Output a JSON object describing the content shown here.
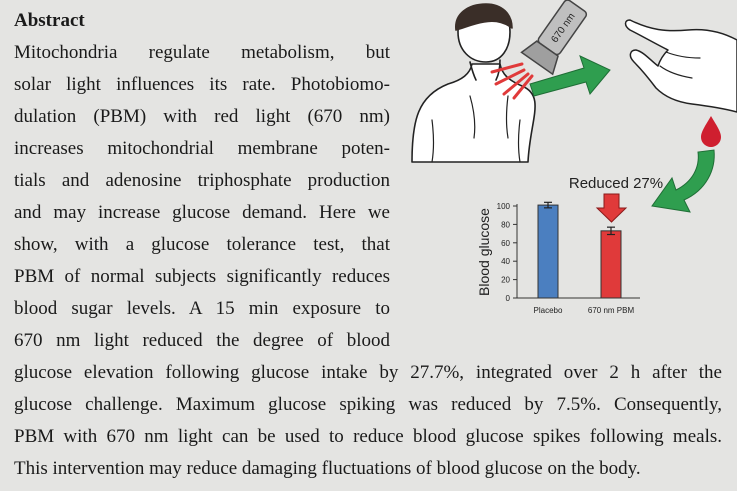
{
  "abstract": {
    "heading": "Abstract",
    "column_lines": [
      "Mitochondria regulate metabolism, but",
      "solar light influences its rate. Photobiomo-",
      "dulation (PBM) with red light (670 nm)",
      "increases mitochondrial membrane poten-",
      "tials and adenosine triphosphate production",
      "and may increase glucose demand. Here we",
      "show, with a glucose tolerance test, that",
      "PBM of normal subjects significantly reduces",
      "blood sugar levels. A 15 min exposure to",
      "670 nm light reduced the degree of blood"
    ],
    "full_lines": [
      "glucose elevation following glucose intake by 27.7%, integrated over 2 h after the",
      "glucose challenge. Maximum glucose spiking was reduced by 7.5%. Consequently,",
      "PBM with 670 nm light can be used to reduce blood glucose spikes following meals.",
      "This intervention may reduce damaging fluctuations of blood glucose on the body."
    ]
  },
  "figure": {
    "flashlight_label": "670 nm",
    "annotation": "Reduced 27%",
    "colors": {
      "placebo": "#4b7fc0",
      "pbm": "#e03a3a",
      "arrow_green": "#2f9e4f",
      "arrow_red": "#e03a3a",
      "blood": "#cf1f2f"
    }
  },
  "chart_data": {
    "type": "bar",
    "categories": [
      "Placebo",
      "670 nm PBM"
    ],
    "values": [
      101,
      73
    ],
    "errors": [
      3,
      4
    ],
    "ylabel": "Blood glucose",
    "ylim": [
      0,
      100
    ],
    "yticks": [
      0,
      20,
      40,
      60,
      80,
      100
    ],
    "grid": false,
    "legend": "none"
  }
}
